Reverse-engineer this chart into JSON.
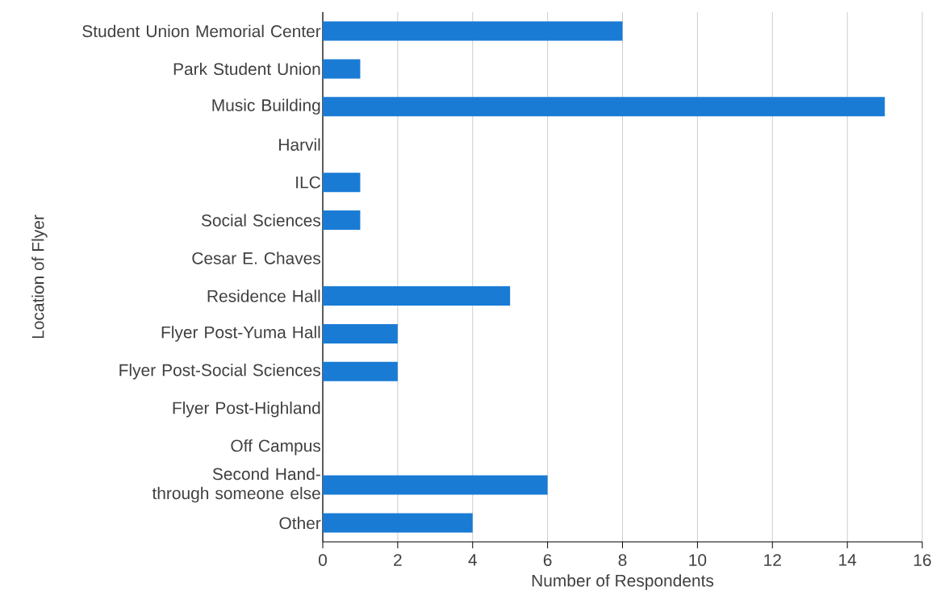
{
  "chart_data": {
    "type": "bar",
    "orientation": "horizontal",
    "categories": [
      "Student Union Memorial Center",
      "Park Student Union",
      "Music Building",
      "Harvil",
      "ILC",
      "Social Sciences",
      "Cesar E. Chaves",
      "Residence Hall",
      "Flyer Post-Yuma Hall",
      "Flyer Post-Social Sciences",
      "Flyer Post-Highland",
      "Off Campus",
      "Second Hand-through someone else",
      "Other"
    ],
    "values": [
      8,
      1,
      15,
      0,
      1,
      1,
      0,
      5,
      2,
      2,
      0,
      0,
      6,
      4
    ],
    "color": "#1a7bd5",
    "xlabel": "Number of Respondents",
    "ylabel": "Location of Flyer",
    "xlim": [
      0,
      16
    ],
    "xticks": [
      0,
      2,
      4,
      6,
      8,
      10,
      12,
      14,
      16
    ],
    "grid": "x"
  }
}
